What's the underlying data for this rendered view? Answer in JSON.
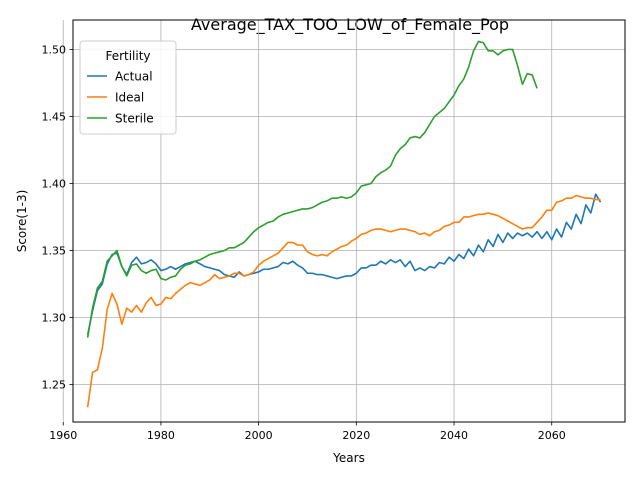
{
  "chart_data": {
    "type": "line",
    "title": "Average_TAX_TOO_LOW_of_Female_Pop",
    "xlabel": "Years",
    "ylabel": "Score(1-3)",
    "xlim": [
      1962,
      2075
    ],
    "ylim": [
      1.222,
      1.522
    ],
    "x_ticks": [
      1960,
      1980,
      2000,
      2020,
      2040,
      2060
    ],
    "y_ticks": [
      1.25,
      1.3,
      1.35,
      1.4,
      1.45,
      1.5
    ],
    "x_tick_labels": [
      "1960",
      "1980",
      "2000",
      "2020",
      "2040",
      "2060"
    ],
    "y_tick_labels": [
      "1.25",
      "1.30",
      "1.35",
      "1.40",
      "1.45",
      "1.50"
    ],
    "grid": true,
    "legend": {
      "title": "Fertility",
      "position": "top-left"
    },
    "series": [
      {
        "name": "Actual",
        "color": "#1f77b4",
        "points": [
          [
            1965,
            1.287
          ],
          [
            1966,
            1.305
          ],
          [
            1967,
            1.32
          ],
          [
            1968,
            1.325
          ],
          [
            1969,
            1.34
          ],
          [
            1970,
            1.347
          ],
          [
            1971,
            1.348
          ],
          [
            1972,
            1.338
          ],
          [
            1973,
            1.332
          ],
          [
            1974,
            1.341
          ],
          [
            1975,
            1.345
          ],
          [
            1976,
            1.34
          ],
          [
            1977,
            1.341
          ],
          [
            1978,
            1.343
          ],
          [
            1979,
            1.34
          ],
          [
            1980,
            1.335
          ],
          [
            1981,
            1.336
          ],
          [
            1982,
            1.338
          ],
          [
            1983,
            1.336
          ],
          [
            1984,
            1.338
          ],
          [
            1985,
            1.34
          ],
          [
            1986,
            1.341
          ],
          [
            1987,
            1.342
          ],
          [
            1988,
            1.34
          ],
          [
            1989,
            1.338
          ],
          [
            1990,
            1.337
          ],
          [
            1991,
            1.336
          ],
          [
            1992,
            1.335
          ],
          [
            1993,
            1.332
          ],
          [
            1994,
            1.331
          ],
          [
            1995,
            1.33
          ],
          [
            1996,
            1.334
          ],
          [
            1997,
            1.331
          ],
          [
            1998,
            1.332
          ],
          [
            1999,
            1.333
          ],
          [
            2000,
            1.334
          ],
          [
            2001,
            1.336
          ],
          [
            2002,
            1.336
          ],
          [
            2003,
            1.337
          ],
          [
            2004,
            1.338
          ],
          [
            2005,
            1.341
          ],
          [
            2006,
            1.34
          ],
          [
            2007,
            1.342
          ],
          [
            2008,
            1.339
          ],
          [
            2009,
            1.337
          ],
          [
            2010,
            1.333
          ],
          [
            2011,
            1.333
          ],
          [
            2012,
            1.332
          ],
          [
            2013,
            1.332
          ],
          [
            2014,
            1.331
          ],
          [
            2015,
            1.33
          ],
          [
            2016,
            1.329
          ],
          [
            2017,
            1.33
          ],
          [
            2018,
            1.331
          ],
          [
            2019,
            1.331
          ],
          [
            2020,
            1.333
          ],
          [
            2021,
            1.337
          ],
          [
            2022,
            1.337
          ],
          [
            2023,
            1.339
          ],
          [
            2024,
            1.339
          ],
          [
            2025,
            1.342
          ],
          [
            2026,
            1.34
          ],
          [
            2027,
            1.343
          ],
          [
            2028,
            1.341
          ],
          [
            2029,
            1.343
          ],
          [
            2030,
            1.338
          ],
          [
            2031,
            1.342
          ],
          [
            2032,
            1.335
          ],
          [
            2033,
            1.337
          ],
          [
            2034,
            1.335
          ],
          [
            2035,
            1.338
          ],
          [
            2036,
            1.337
          ],
          [
            2037,
            1.341
          ],
          [
            2038,
            1.34
          ],
          [
            2039,
            1.345
          ],
          [
            2040,
            1.342
          ],
          [
            2041,
            1.347
          ],
          [
            2042,
            1.344
          ],
          [
            2043,
            1.351
          ],
          [
            2044,
            1.346
          ],
          [
            2045,
            1.354
          ],
          [
            2046,
            1.349
          ],
          [
            2047,
            1.358
          ],
          [
            2048,
            1.353
          ],
          [
            2049,
            1.362
          ],
          [
            2050,
            1.356
          ],
          [
            2051,
            1.363
          ],
          [
            2052,
            1.359
          ],
          [
            2053,
            1.363
          ],
          [
            2054,
            1.361
          ],
          [
            2055,
            1.363
          ],
          [
            2056,
            1.36
          ],
          [
            2057,
            1.364
          ],
          [
            2058,
            1.359
          ],
          [
            2059,
            1.364
          ],
          [
            2060,
            1.358
          ],
          [
            2061,
            1.366
          ],
          [
            2062,
            1.36
          ],
          [
            2063,
            1.371
          ],
          [
            2064,
            1.366
          ],
          [
            2065,
            1.377
          ],
          [
            2066,
            1.37
          ],
          [
            2067,
            1.384
          ],
          [
            2068,
            1.378
          ],
          [
            2069,
            1.392
          ],
          [
            2070,
            1.386
          ]
        ]
      },
      {
        "name": "Ideal",
        "color": "#ff7f0e",
        "points": [
          [
            1965,
            1.233
          ],
          [
            1966,
            1.259
          ],
          [
            1967,
            1.261
          ],
          [
            1968,
            1.277
          ],
          [
            1969,
            1.306
          ],
          [
            1970,
            1.318
          ],
          [
            1971,
            1.31
          ],
          [
            1972,
            1.295
          ],
          [
            1973,
            1.307
          ],
          [
            1974,
            1.304
          ],
          [
            1975,
            1.309
          ],
          [
            1976,
            1.304
          ],
          [
            1977,
            1.311
          ],
          [
            1978,
            1.315
          ],
          [
            1979,
            1.309
          ],
          [
            1980,
            1.31
          ],
          [
            1981,
            1.315
          ],
          [
            1982,
            1.314
          ],
          [
            1983,
            1.318
          ],
          [
            1984,
            1.321
          ],
          [
            1985,
            1.324
          ],
          [
            1986,
            1.326
          ],
          [
            1987,
            1.325
          ],
          [
            1988,
            1.324
          ],
          [
            1989,
            1.326
          ],
          [
            1990,
            1.328
          ],
          [
            1991,
            1.332
          ],
          [
            1992,
            1.329
          ],
          [
            1993,
            1.33
          ],
          [
            1994,
            1.331
          ],
          [
            1995,
            1.333
          ],
          [
            1996,
            1.333
          ],
          [
            1997,
            1.331
          ],
          [
            1998,
            1.332
          ],
          [
            1999,
            1.334
          ],
          [
            2000,
            1.339
          ],
          [
            2001,
            1.342
          ],
          [
            2002,
            1.344
          ],
          [
            2003,
            1.346
          ],
          [
            2004,
            1.348
          ],
          [
            2005,
            1.352
          ],
          [
            2006,
            1.356
          ],
          [
            2007,
            1.356
          ],
          [
            2008,
            1.354
          ],
          [
            2009,
            1.354
          ],
          [
            2010,
            1.349
          ],
          [
            2011,
            1.347
          ],
          [
            2012,
            1.346
          ],
          [
            2013,
            1.347
          ],
          [
            2014,
            1.346
          ],
          [
            2015,
            1.349
          ],
          [
            2016,
            1.351
          ],
          [
            2017,
            1.353
          ],
          [
            2018,
            1.354
          ],
          [
            2019,
            1.357
          ],
          [
            2020,
            1.359
          ],
          [
            2021,
            1.362
          ],
          [
            2022,
            1.363
          ],
          [
            2023,
            1.365
          ],
          [
            2024,
            1.366
          ],
          [
            2025,
            1.366
          ],
          [
            2026,
            1.365
          ],
          [
            2027,
            1.364
          ],
          [
            2028,
            1.365
          ],
          [
            2029,
            1.366
          ],
          [
            2030,
            1.366
          ],
          [
            2031,
            1.365
          ],
          [
            2032,
            1.364
          ],
          [
            2033,
            1.362
          ],
          [
            2034,
            1.363
          ],
          [
            2035,
            1.361
          ],
          [
            2036,
            1.364
          ],
          [
            2037,
            1.365
          ],
          [
            2038,
            1.368
          ],
          [
            2039,
            1.369
          ],
          [
            2040,
            1.371
          ],
          [
            2041,
            1.371
          ],
          [
            2042,
            1.375
          ],
          [
            2043,
            1.375
          ],
          [
            2044,
            1.376
          ],
          [
            2045,
            1.377
          ],
          [
            2046,
            1.377
          ],
          [
            2047,
            1.378
          ],
          [
            2048,
            1.377
          ],
          [
            2049,
            1.376
          ],
          [
            2050,
            1.374
          ],
          [
            2051,
            1.372
          ],
          [
            2052,
            1.37
          ],
          [
            2053,
            1.368
          ],
          [
            2054,
            1.366
          ],
          [
            2055,
            1.367
          ],
          [
            2056,
            1.367
          ],
          [
            2057,
            1.371
          ],
          [
            2058,
            1.375
          ],
          [
            2059,
            1.38
          ],
          [
            2060,
            1.38
          ],
          [
            2061,
            1.386
          ],
          [
            2062,
            1.387
          ],
          [
            2063,
            1.389
          ],
          [
            2064,
            1.389
          ],
          [
            2065,
            1.391
          ],
          [
            2066,
            1.39
          ],
          [
            2067,
            1.389
          ],
          [
            2068,
            1.389
          ],
          [
            2069,
            1.388
          ],
          [
            2070,
            1.388
          ]
        ]
      },
      {
        "name": "Sterile",
        "color": "#2ca02c",
        "points": [
          [
            1965,
            1.285
          ],
          [
            1966,
            1.307
          ],
          [
            1967,
            1.322
          ],
          [
            1968,
            1.327
          ],
          [
            1969,
            1.342
          ],
          [
            1970,
            1.346
          ],
          [
            1971,
            1.35
          ],
          [
            1972,
            1.338
          ],
          [
            1973,
            1.331
          ],
          [
            1974,
            1.339
          ],
          [
            1975,
            1.34
          ],
          [
            1976,
            1.335
          ],
          [
            1977,
            1.333
          ],
          [
            1978,
            1.335
          ],
          [
            1979,
            1.336
          ],
          [
            1980,
            1.329
          ],
          [
            1981,
            1.328
          ],
          [
            1982,
            1.33
          ],
          [
            1983,
            1.331
          ],
          [
            1984,
            1.336
          ],
          [
            1985,
            1.339
          ],
          [
            1986,
            1.34
          ],
          [
            1987,
            1.342
          ],
          [
            1988,
            1.343
          ],
          [
            1989,
            1.345
          ],
          [
            1990,
            1.347
          ],
          [
            1991,
            1.348
          ],
          [
            1992,
            1.349
          ],
          [
            1993,
            1.35
          ],
          [
            1994,
            1.352
          ],
          [
            1995,
            1.352
          ],
          [
            1996,
            1.354
          ],
          [
            1997,
            1.356
          ],
          [
            1998,
            1.36
          ],
          [
            1999,
            1.364
          ],
          [
            2000,
            1.367
          ],
          [
            2001,
            1.369
          ],
          [
            2002,
            1.371
          ],
          [
            2003,
            1.372
          ],
          [
            2004,
            1.375
          ],
          [
            2005,
            1.377
          ],
          [
            2006,
            1.378
          ],
          [
            2007,
            1.379
          ],
          [
            2008,
            1.38
          ],
          [
            2009,
            1.381
          ],
          [
            2010,
            1.381
          ],
          [
            2011,
            1.382
          ],
          [
            2012,
            1.384
          ],
          [
            2013,
            1.386
          ],
          [
            2014,
            1.387
          ],
          [
            2015,
            1.389
          ],
          [
            2016,
            1.389
          ],
          [
            2017,
            1.39
          ],
          [
            2018,
            1.389
          ],
          [
            2019,
            1.39
          ],
          [
            2020,
            1.393
          ],
          [
            2021,
            1.398
          ],
          [
            2022,
            1.399
          ],
          [
            2023,
            1.4
          ],
          [
            2024,
            1.405
          ],
          [
            2025,
            1.408
          ],
          [
            2026,
            1.41
          ],
          [
            2027,
            1.413
          ],
          [
            2028,
            1.421
          ],
          [
            2029,
            1.426
          ],
          [
            2030,
            1.429
          ],
          [
            2031,
            1.434
          ],
          [
            2032,
            1.435
          ],
          [
            2033,
            1.434
          ],
          [
            2034,
            1.438
          ],
          [
            2035,
            1.444
          ],
          [
            2036,
            1.45
          ],
          [
            2037,
            1.453
          ],
          [
            2038,
            1.456
          ],
          [
            2039,
            1.461
          ],
          [
            2040,
            1.466
          ],
          [
            2041,
            1.473
          ],
          [
            2042,
            1.478
          ],
          [
            2043,
            1.487
          ],
          [
            2044,
            1.499
          ],
          [
            2045,
            1.506
          ],
          [
            2046,
            1.505
          ],
          [
            2047,
            1.499
          ],
          [
            2048,
            1.499
          ],
          [
            2049,
            1.496
          ],
          [
            2050,
            1.499
          ],
          [
            2051,
            1.5
          ],
          [
            2052,
            1.5
          ],
          [
            2053,
            1.488
          ],
          [
            2054,
            1.474
          ],
          [
            2055,
            1.482
          ],
          [
            2056,
            1.481
          ],
          [
            2057,
            1.471
          ]
        ]
      }
    ]
  }
}
